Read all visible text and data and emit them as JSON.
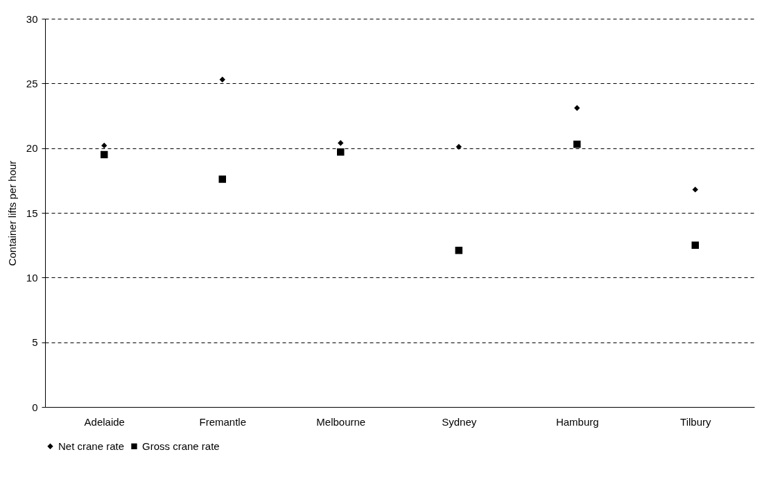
{
  "chart_data": {
    "type": "scatter",
    "ylabel": "Container lifts per hour",
    "categories": [
      "Adelaide",
      "Fremantle",
      "Melbourne",
      "Sydney",
      "Hamburg",
      "Tilbury"
    ],
    "series": [
      {
        "name": "Net crane rate",
        "color": "#000000",
        "marker": "diamond",
        "values": [
          20.2,
          25.3,
          20.4,
          20.1,
          23.1,
          16.8
        ]
      },
      {
        "name": "Gross crane rate",
        "color": "#000000",
        "marker": "square",
        "values": [
          19.5,
          17.6,
          19.7,
          12.1,
          20.3,
          12.5
        ]
      }
    ],
    "ylim": [
      0,
      30
    ],
    "yticks": [
      0,
      5,
      10,
      15,
      20,
      25,
      30
    ],
    "grid": "y",
    "legend": "bottom"
  }
}
